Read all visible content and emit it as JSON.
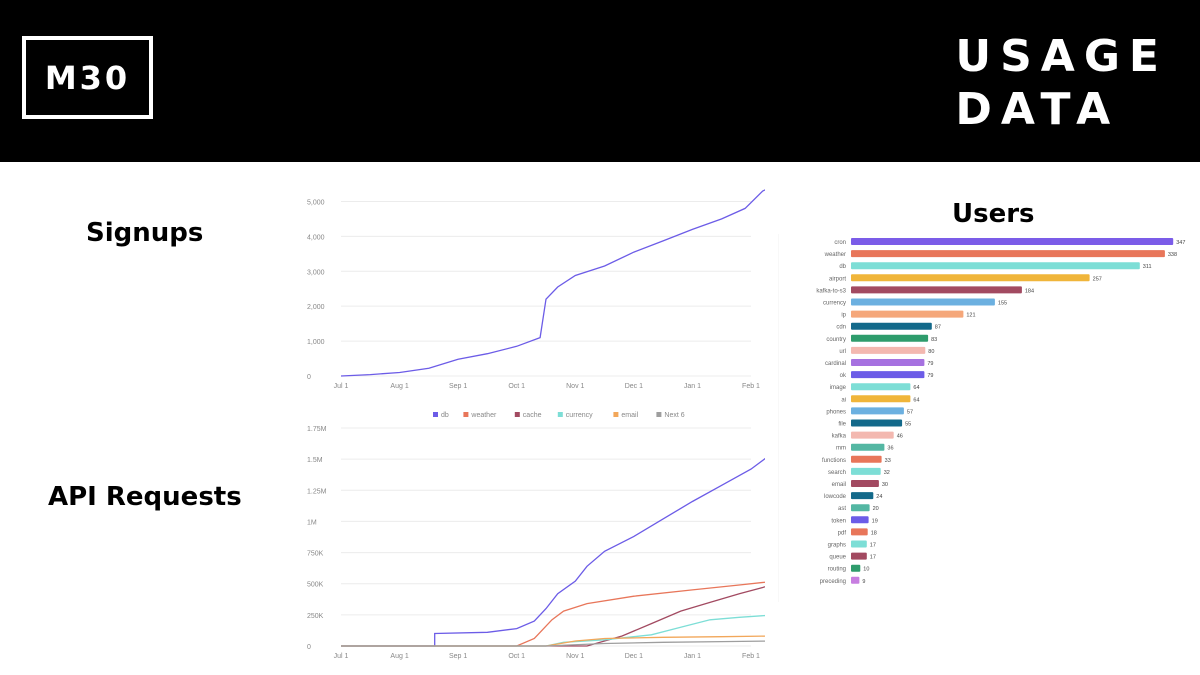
{
  "header": {
    "logo": "M30",
    "title_line1": "USAGE",
    "title_line2": "DATA"
  },
  "labels": {
    "signups": "Signups",
    "api_requests": "API Requests",
    "users": "Users"
  },
  "chart_data": [
    {
      "type": "line",
      "x_ticks": [
        "Jul 1",
        "Aug 1",
        "Sep 1",
        "Oct 1",
        "Nov 1",
        "Dec 1",
        "Jan 1",
        "Feb 1"
      ],
      "y_ticks": [
        "0",
        "1,000",
        "2,000",
        "3,000",
        "4,000",
        "5,000"
      ],
      "ylim": [
        0,
        5500
      ],
      "grid": true,
      "series": [
        {
          "color": "#6c5ce7",
          "points": [
            [
              0,
              0
            ],
            [
              0.5,
              40
            ],
            [
              1,
              100
            ],
            [
              1.5,
              220
            ],
            [
              2,
              480
            ],
            [
              2.5,
              640
            ],
            [
              3,
              850
            ],
            [
              3.4,
              1100
            ],
            [
              3.5,
              2200
            ],
            [
              3.7,
              2550
            ],
            [
              4,
              2880
            ],
            [
              4.5,
              3150
            ],
            [
              5,
              3550
            ],
            [
              5.5,
              3870
            ],
            [
              6,
              4200
            ],
            [
              6.5,
              4500
            ],
            [
              6.9,
              4800
            ],
            [
              7.2,
              5300
            ],
            [
              7.4,
              5450
            ]
          ]
        }
      ]
    },
    {
      "type": "line",
      "x_ticks": [
        "Jul 1",
        "Aug 1",
        "Sep 1",
        "Oct 1",
        "Nov 1",
        "Dec 1",
        "Jan 1",
        "Feb 1"
      ],
      "y_ticks": [
        "0",
        "250K",
        "500K",
        "750K",
        "1M",
        "1.25M",
        "1.5M",
        "1.75M"
      ],
      "ylim": [
        0,
        1750000
      ],
      "grid": true,
      "legend": {
        "position": "top",
        "entries": [
          "db",
          "weather",
          "cache",
          "currency",
          "email",
          "Next 6"
        ]
      },
      "series": [
        {
          "name": "db",
          "color": "#6c5ce7",
          "points": [
            [
              0,
              0
            ],
            [
              1.6,
              0
            ],
            [
              1.6,
              100000
            ],
            [
              2.5,
              110000
            ],
            [
              3,
              140000
            ],
            [
              3.3,
              200000
            ],
            [
              3.5,
              300000
            ],
            [
              3.7,
              420000
            ],
            [
              4,
              520000
            ],
            [
              4.2,
              640000
            ],
            [
              4.5,
              760000
            ],
            [
              5,
              880000
            ],
            [
              5.5,
              1020000
            ],
            [
              6,
              1160000
            ],
            [
              6.5,
              1290000
            ],
            [
              7,
              1420000
            ],
            [
              7.4,
              1560000
            ]
          ]
        },
        {
          "name": "weather",
          "color": "#e8765a",
          "points": [
            [
              0,
              0
            ],
            [
              3,
              0
            ],
            [
              3.3,
              60000
            ],
            [
              3.6,
              210000
            ],
            [
              3.8,
              280000
            ],
            [
              4.2,
              340000
            ],
            [
              5,
              400000
            ],
            [
              6,
              450000
            ],
            [
              6.8,
              490000
            ],
            [
              7.4,
              520000
            ]
          ]
        },
        {
          "name": "cache",
          "color": "#a24a61",
          "points": [
            [
              0,
              0
            ],
            [
              4.2,
              0
            ],
            [
              4.8,
              80000
            ],
            [
              5.3,
              180000
            ],
            [
              5.8,
              280000
            ],
            [
              6.3,
              350000
            ],
            [
              6.8,
              420000
            ],
            [
              7.2,
              470000
            ],
            [
              7.4,
              500000
            ]
          ]
        },
        {
          "name": "currency",
          "color": "#7dded6",
          "points": [
            [
              0,
              0
            ],
            [
              3.5,
              0
            ],
            [
              3.8,
              30000
            ],
            [
              4.5,
              50000
            ],
            [
              5.3,
              90000
            ],
            [
              5.8,
              150000
            ],
            [
              6.3,
              210000
            ],
            [
              6.8,
              230000
            ],
            [
              7.4,
              250000
            ]
          ]
        },
        {
          "name": "email",
          "color": "#f2a75a",
          "points": [
            [
              0,
              0
            ],
            [
              3.5,
              0
            ],
            [
              4,
              40000
            ],
            [
              4.5,
              60000
            ],
            [
              5.5,
              70000
            ],
            [
              6.5,
              75000
            ],
            [
              7.4,
              80000
            ]
          ]
        },
        {
          "name": "Next 6",
          "color": "#9e9e9e",
          "points": [
            [
              0,
              0
            ],
            [
              3.5,
              0
            ],
            [
              4.5,
              20000
            ],
            [
              5.5,
              30000
            ],
            [
              6.5,
              35000
            ],
            [
              7.4,
              40000
            ]
          ]
        }
      ]
    },
    {
      "type": "bar",
      "orientation": "horizontal",
      "title": "Users",
      "categories": [
        "cron",
        "weather",
        "db",
        "airport",
        "kafka-to-s3",
        "currency",
        "ip",
        "cdn",
        "country",
        "url",
        "cardinal",
        "ok",
        "image",
        "ai",
        "phones",
        "file",
        "kafka",
        "mm",
        "functions",
        "search",
        "email",
        "lowcode",
        "ast",
        "token",
        "pdf",
        "graphs",
        "queue",
        "routing",
        "preceding"
      ],
      "values": [
        347,
        338,
        311,
        257,
        184,
        155,
        121,
        87,
        83,
        80,
        79,
        79,
        64,
        64,
        57,
        55,
        46,
        36,
        33,
        32,
        30,
        24,
        20,
        19,
        18,
        17,
        17,
        10,
        9
      ],
      "colors": [
        "#7b5ce8",
        "#e8765a",
        "#7dded6",
        "#f0b53a",
        "#a24a61",
        "#6cb0e0",
        "#f5a77a",
        "#13698a",
        "#2e9c6c",
        "#f3b8b0",
        "#a671e0",
        "#6c5ce7",
        "#7dded6",
        "#f0b53a",
        "#6cb0e0",
        "#13698a",
        "#f3b8b0",
        "#54b7a3",
        "#e8765a",
        "#7dded6",
        "#a24a61",
        "#13698a",
        "#54b7a3",
        "#6c5ce7",
        "#e8765a",
        "#7dded6",
        "#a24a61",
        "#2e9c6c",
        "#c77ee0"
      ],
      "xlim": [
        0,
        350
      ]
    }
  ]
}
